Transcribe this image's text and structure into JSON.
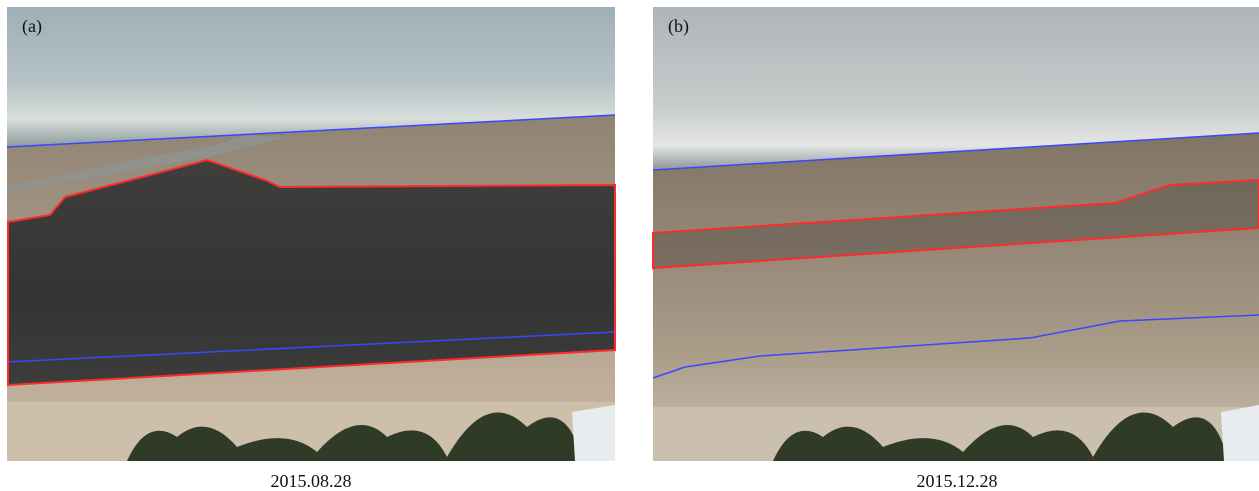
{
  "panels": [
    {
      "label": "(a)",
      "caption": "2015.08.28"
    },
    {
      "label": "(b)",
      "caption": "2015.12.28"
    }
  ]
}
